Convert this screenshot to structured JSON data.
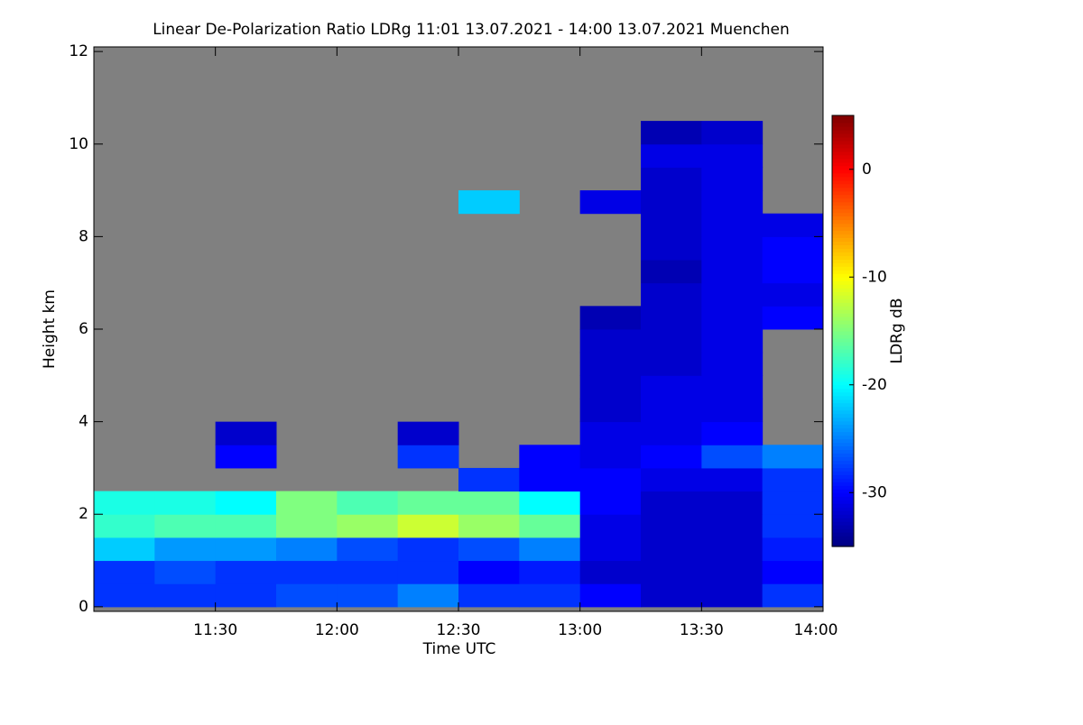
{
  "chart_data": {
    "type": "heatmap",
    "title": "Linear De-Polarization Ratio LDRg   11:01 13.07.2021 - 14:00 13.07.2021 Muenchen",
    "x_label": "Time UTC",
    "y_label": "Height km",
    "colorbar_label": "LDRg dB",
    "background_color": "#808080",
    "colormap": "jet",
    "xlim": [
      11.0,
      14.0
    ],
    "xticks": [
      {
        "value": 11.5,
        "label": "11:30"
      },
      {
        "value": 12.0,
        "label": "12:00"
      },
      {
        "value": 12.5,
        "label": "12:30"
      },
      {
        "value": 13.0,
        "label": "13:00"
      },
      {
        "value": 13.5,
        "label": "13:30"
      },
      {
        "value": 14.0,
        "label": "14:00"
      }
    ],
    "ylim": [
      -0.1,
      12.1
    ],
    "yticks": [
      0,
      2,
      4,
      6,
      8,
      10,
      12
    ],
    "zlim": [
      -35,
      5
    ],
    "zticks": [
      0,
      -10,
      -20,
      -30
    ],
    "x": [
      11.125,
      11.375,
      11.625,
      11.875,
      12.125,
      12.375,
      12.625,
      12.875,
      13.125,
      13.375,
      13.625,
      13.875
    ],
    "y": [
      0.25,
      0.75,
      1.25,
      1.75,
      2.25,
      2.75,
      3.25,
      3.75,
      4.25,
      4.75,
      5.25,
      5.75,
      6.25,
      6.75,
      7.25,
      7.75,
      8.25,
      8.75,
      9.25,
      9.75,
      10.25
    ],
    "z": [
      [
        -28,
        -28,
        -28,
        -27,
        -27,
        -25,
        -28,
        -28,
        -30,
        -32,
        -32,
        -28
      ],
      [
        -28,
        -27,
        -28,
        -28,
        -28,
        -28,
        -30,
        -29,
        -32,
        -32,
        -32,
        -30
      ],
      [
        -22,
        -24,
        -24,
        -25,
        -27,
        -28,
        -27,
        -25,
        -31,
        -32,
        -32,
        -29
      ],
      [
        -18,
        -17,
        -17,
        -15,
        -14,
        -12,
        -14,
        -16,
        -31,
        -32,
        -32,
        -28
      ],
      [
        -19,
        -19,
        -20,
        -15,
        -17,
        -16,
        -16,
        -20,
        -30,
        -32,
        -32,
        -28
      ],
      [
        null,
        null,
        null,
        null,
        null,
        null,
        -28,
        -30,
        -30,
        -31,
        -31,
        -28
      ],
      [
        null,
        null,
        -30,
        null,
        null,
        -28,
        null,
        -30,
        -31,
        -30,
        -27,
        -25
      ],
      [
        null,
        null,
        -32,
        null,
        null,
        -32,
        null,
        null,
        -31,
        -31,
        -30,
        null
      ],
      [
        null,
        null,
        null,
        null,
        null,
        null,
        null,
        null,
        -32,
        -31,
        -31,
        null
      ],
      [
        null,
        null,
        null,
        null,
        null,
        null,
        null,
        null,
        -32,
        -31,
        -31,
        null
      ],
      [
        null,
        null,
        null,
        null,
        null,
        null,
        null,
        null,
        -32,
        -32,
        -31,
        null
      ],
      [
        null,
        null,
        null,
        null,
        null,
        null,
        null,
        null,
        -32,
        -32,
        -31,
        null
      ],
      [
        null,
        null,
        null,
        null,
        null,
        null,
        null,
        null,
        -33,
        -32,
        -31,
        -30
      ],
      [
        null,
        null,
        null,
        null,
        null,
        null,
        null,
        null,
        null,
        -32,
        -31,
        -31
      ],
      [
        null,
        null,
        null,
        null,
        null,
        null,
        null,
        null,
        null,
        -33,
        -31,
        -30
      ],
      [
        null,
        null,
        null,
        null,
        null,
        null,
        null,
        null,
        null,
        -32,
        -31,
        -30
      ],
      [
        null,
        null,
        null,
        null,
        null,
        null,
        null,
        null,
        null,
        -32,
        -31,
        -31
      ],
      [
        null,
        null,
        null,
        null,
        null,
        null,
        -22,
        null,
        -31,
        -32,
        -31,
        null
      ],
      [
        null,
        null,
        null,
        null,
        null,
        null,
        null,
        null,
        null,
        -32,
        -31,
        null
      ],
      [
        null,
        null,
        null,
        null,
        null,
        null,
        null,
        null,
        null,
        -31,
        -31,
        null
      ],
      [
        null,
        null,
        null,
        null,
        null,
        null,
        null,
        null,
        null,
        -33,
        -32,
        null
      ]
    ]
  }
}
